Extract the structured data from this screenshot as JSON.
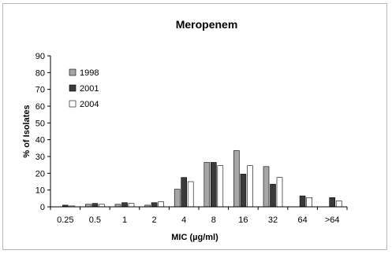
{
  "chart_data": {
    "type": "bar",
    "title": "Meropenem",
    "xlabel": "MIC (µg/ml)",
    "ylabel": "% of Isolates",
    "ylim": [
      0,
      90
    ],
    "yticks": [
      "0",
      "10",
      "20",
      "30",
      "40",
      "50",
      "60",
      "70",
      "80",
      "90"
    ],
    "grid": false,
    "legend_position": "top-left",
    "categories": [
      "0.25",
      "0.5",
      "1",
      "2",
      "4",
      "8",
      "16",
      "32",
      "64",
      ">64"
    ],
    "series": [
      {
        "name": "1998",
        "color": "#a6a6a6",
        "values": [
          0,
          1.5,
          1.5,
          1,
          10.5,
          26.5,
          33.5,
          24,
          0,
          0
        ]
      },
      {
        "name": "2001",
        "color": "#3a3a3a",
        "values": [
          1,
          2,
          2.5,
          2.5,
          17.5,
          26.5,
          19.5,
          13.5,
          6.5,
          5.5
        ]
      },
      {
        "name": "2004",
        "color": "#ffffff",
        "values": [
          0.5,
          1.5,
          2,
          3,
          15,
          24.5,
          24.5,
          17.5,
          5.5,
          3.5
        ]
      }
    ]
  }
}
